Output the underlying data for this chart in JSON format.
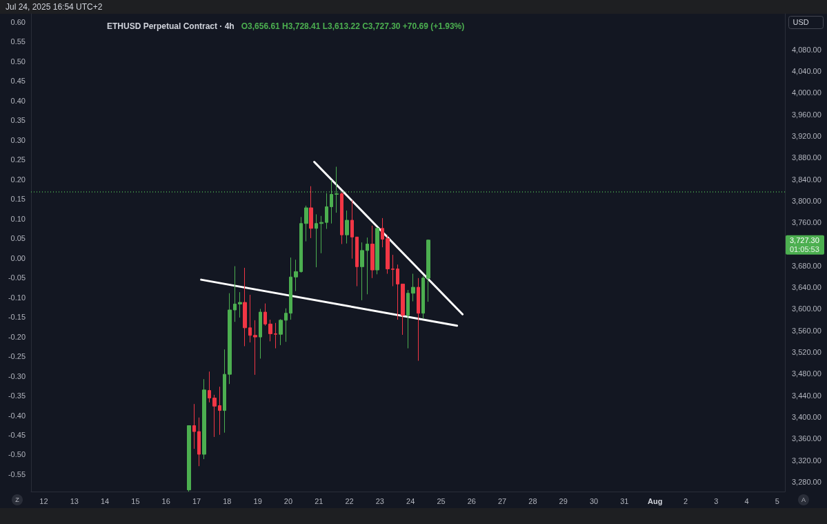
{
  "chart_data": {
    "type": "candlestick",
    "title": "ETHUSD Perpetual Contract · 4h",
    "subtitle": "O3,656.61 H3,728.41 L3,613.22 C3,727.30 +70.69 (+1.93%)",
    "annotations": [
      "Jul 24, 2025 16:54 UTC+2",
      "USD",
      "3,727.30",
      "01:05:53",
      "Z",
      "A"
    ],
    "x": [
      "2025-07-16T18:00",
      "2025-07-16T22:00",
      "2025-07-17T02:00",
      "2025-07-17T06:00",
      "2025-07-17T10:00",
      "2025-07-17T14:00",
      "2025-07-17T18:00",
      "2025-07-17T22:00",
      "2025-07-18T02:00",
      "2025-07-18T06:00",
      "2025-07-18T10:00",
      "2025-07-18T14:00",
      "2025-07-18T18:00",
      "2025-07-18T22:00",
      "2025-07-19T02:00",
      "2025-07-19T06:00",
      "2025-07-19T10:00",
      "2025-07-19T14:00",
      "2025-07-19T18:00",
      "2025-07-19T22:00",
      "2025-07-20T02:00",
      "2025-07-20T06:00",
      "2025-07-20T10:00",
      "2025-07-20T14:00",
      "2025-07-20T18:00",
      "2025-07-20T22:00",
      "2025-07-21T02:00",
      "2025-07-21T06:00",
      "2025-07-21T10:00",
      "2025-07-21T14:00",
      "2025-07-21T18:00",
      "2025-07-21T22:00",
      "2025-07-22T02:00",
      "2025-07-22T06:00",
      "2025-07-22T10:00",
      "2025-07-22T14:00",
      "2025-07-22T18:00",
      "2025-07-22T22:00",
      "2025-07-23T02:00",
      "2025-07-23T06:00",
      "2025-07-23T10:00",
      "2025-07-23T14:00",
      "2025-07-23T18:00",
      "2025-07-23T22:00",
      "2025-07-24T02:00",
      "2025-07-24T06:00",
      "2025-07-24T10:00",
      "2025-07-24T14:00"
    ],
    "ohlc": [
      [
        3265,
        3384,
        3262,
        3384
      ],
      [
        3384,
        3424,
        3341,
        3373
      ],
      [
        3373,
        3399,
        3309,
        3331
      ],
      [
        3331,
        3470,
        3322,
        3450
      ],
      [
        3449,
        3484,
        3427,
        3435
      ],
      [
        3435,
        3441,
        3363,
        3420
      ],
      [
        3421,
        3456,
        3367,
        3412
      ],
      [
        3412,
        3525,
        3371,
        3479
      ],
      [
        3479,
        3629,
        3461,
        3598
      ],
      [
        3598,
        3679,
        3576,
        3609
      ],
      [
        3609,
        3631,
        3584,
        3612
      ],
      [
        3612,
        3676,
        3531,
        3565
      ],
      [
        3565,
        3626,
        3538,
        3551
      ],
      [
        3551,
        3579,
        3478,
        3548
      ],
      [
        3548,
        3600,
        3508,
        3594
      ],
      [
        3594,
        3610,
        3569,
        3572
      ],
      [
        3572,
        3580,
        3540,
        3554
      ],
      [
        3554,
        3574,
        3527,
        3553
      ],
      [
        3553,
        3581,
        3533,
        3579
      ],
      [
        3579,
        3601,
        3539,
        3592
      ],
      [
        3592,
        3695,
        3580,
        3659
      ],
      [
        3659,
        3691,
        3633,
        3669
      ],
      [
        3669,
        3770,
        3667,
        3758
      ],
      [
        3758,
        3791,
        3725,
        3787
      ],
      [
        3787,
        3827,
        3731,
        3749
      ],
      [
        3749,
        3775,
        3677,
        3758
      ],
      [
        3758,
        3772,
        3703,
        3760
      ],
      [
        3760,
        3814,
        3748,
        3789
      ],
      [
        3789,
        3838,
        3758,
        3812
      ],
      [
        3812,
        3863,
        3778,
        3813
      ],
      [
        3813,
        3816,
        3720,
        3737
      ],
      [
        3737,
        3782,
        3721,
        3764
      ],
      [
        3764,
        3801,
        3693,
        3733
      ],
      [
        3733,
        3733,
        3642,
        3678
      ],
      [
        3678,
        3723,
        3616,
        3708
      ],
      [
        3708,
        3732,
        3627,
        3720
      ],
      [
        3720,
        3754,
        3657,
        3672
      ],
      [
        3672,
        3751,
        3664,
        3749
      ],
      [
        3749,
        3768,
        3714,
        3729
      ],
      [
        3730,
        3737,
        3665,
        3674
      ],
      [
        3674,
        3700,
        3642,
        3673
      ],
      [
        3674,
        3682,
        3580,
        3646
      ],
      [
        3646,
        3646,
        3552,
        3588
      ],
      [
        3588,
        3635,
        3527,
        3629
      ],
      [
        3629,
        3665,
        3614,
        3640
      ],
      [
        3640,
        3657,
        3504,
        3592
      ],
      [
        3592,
        3661,
        3582,
        3657
      ],
      [
        3656.61,
        3728.41,
        3613.22,
        3727.3
      ]
    ],
    "colors": [
      "#4caf50",
      "#f23645",
      "#f23645",
      "#4caf50",
      "#f23645",
      "#f23645",
      "#f23645",
      "#4caf50",
      "#4caf50",
      "#4caf50",
      "#4caf50",
      "#f23645",
      "#f23645",
      "#f23645",
      "#4caf50",
      "#f23645",
      "#f23645",
      "#f23645",
      "#4caf50",
      "#4caf50",
      "#4caf50",
      "#4caf50",
      "#4caf50",
      "#4caf50",
      "#f23645",
      "#4caf50",
      "#4caf50",
      "#4caf50",
      "#4caf50",
      "#4caf50",
      "#f23645",
      "#4caf50",
      "#f23645",
      "#f23645",
      "#4caf50",
      "#4caf50",
      "#f23645",
      "#4caf50",
      "#f23645",
      "#f23645",
      "#f23645",
      "#f23645",
      "#f23645",
      "#4caf50",
      "#4caf50",
      "#f23645",
      "#4caf50",
      "#4caf50"
    ],
    "series": [
      {
        "type": "line",
        "color": "#ffffff",
        "x": [
          "2025-07-20T20:24",
          "2025-07-25T16:50"
        ],
        "values": [
          3872,
          3590
        ]
      },
      {
        "type": "line",
        "color": "#ffffff",
        "x": [
          "2025-07-17T03:36",
          "2025-07-25T12:30"
        ],
        "values": [
          3654,
          3569
        ]
      }
    ],
    "ref_lines": [
      {
        "axis": "y",
        "value": 3817,
        "color": "#4caf50",
        "line_style": "dotted"
      }
    ],
    "xlim": [
      "2025-07-11T14:00",
      "2025-08-05T06:00"
    ],
    "xticks": [
      {
        "value": "2025-07-12",
        "label": "12"
      },
      {
        "value": "2025-07-13",
        "label": "13"
      },
      {
        "value": "2025-07-14",
        "label": "14"
      },
      {
        "value": "2025-07-15",
        "label": "15"
      },
      {
        "value": "2025-07-16",
        "label": "16"
      },
      {
        "value": "2025-07-17",
        "label": "17"
      },
      {
        "value": "2025-07-18",
        "label": "18"
      },
      {
        "value": "2025-07-19",
        "label": "19"
      },
      {
        "value": "2025-07-20",
        "label": "20"
      },
      {
        "value": "2025-07-21",
        "label": "21"
      },
      {
        "value": "2025-07-22",
        "label": "22"
      },
      {
        "value": "2025-07-23",
        "label": "23"
      },
      {
        "value": "2025-07-24",
        "label": "24"
      },
      {
        "value": "2025-07-25",
        "label": "25"
      },
      {
        "value": "2025-07-26",
        "label": "26"
      },
      {
        "value": "2025-07-27",
        "label": "27"
      },
      {
        "value": "2025-07-28",
        "label": "28"
      },
      {
        "value": "2025-07-29",
        "label": "29"
      },
      {
        "value": "2025-07-30",
        "label": "30"
      },
      {
        "value": "2025-07-31",
        "label": "31"
      },
      {
        "value": "2025-08-01",
        "label": "Aug"
      },
      {
        "value": "2025-08-02",
        "label": "2"
      },
      {
        "value": "2025-08-03",
        "label": "3"
      },
      {
        "value": "2025-08-04",
        "label": "4"
      },
      {
        "value": "2025-08-05",
        "label": "5"
      }
    ],
    "ylim": [
      3262,
      4146
    ],
    "yticks": [
      {
        "value": 3280,
        "label": "3,280.00"
      },
      {
        "value": 3320,
        "label": "3,320.00"
      },
      {
        "value": 3360,
        "label": "3,360.00"
      },
      {
        "value": 3400,
        "label": "3,400.00"
      },
      {
        "value": 3440,
        "label": "3,440.00"
      },
      {
        "value": 3480,
        "label": "3,480.00"
      },
      {
        "value": 3520,
        "label": "3,520.00"
      },
      {
        "value": 3560,
        "label": "3,560.00"
      },
      {
        "value": 3600,
        "label": "3,600.00"
      },
      {
        "value": 3640,
        "label": "3,640.00"
      },
      {
        "value": 3680,
        "label": "3,680.00"
      },
      {
        "value": 3760,
        "label": "3,760.00"
      },
      {
        "value": 3800,
        "label": "3,800.00"
      },
      {
        "value": 3840,
        "label": "3,840.00"
      },
      {
        "value": 3880,
        "label": "3,880.00"
      },
      {
        "value": 3920,
        "label": "3,920.00"
      },
      {
        "value": 3960,
        "label": "3,960.00"
      },
      {
        "value": 4000,
        "label": "4,000.00"
      },
      {
        "value": 4040,
        "label": "4,040.00"
      },
      {
        "value": 4080,
        "label": "4,080.00"
      }
    ],
    "y2lim": [
      -0.594,
      0.621
    ],
    "y2ticks": [
      {
        "value": 0.6,
        "label": "0.60"
      },
      {
        "value": 0.55,
        "label": "0.55"
      },
      {
        "value": 0.5,
        "label": "0.50"
      },
      {
        "value": 0.45,
        "label": "0.45"
      },
      {
        "value": 0.4,
        "label": "0.40"
      },
      {
        "value": 0.35,
        "label": "0.35"
      },
      {
        "value": 0.3,
        "label": "0.30"
      },
      {
        "value": 0.25,
        "label": "0.25"
      },
      {
        "value": 0.2,
        "label": "0.20"
      },
      {
        "value": 0.15,
        "label": "0.15"
      },
      {
        "value": 0.1,
        "label": "0.10"
      },
      {
        "value": 0.05,
        "label": "0.05"
      },
      {
        "value": 0,
        "label": "0.00"
      },
      {
        "value": -0.05,
        "label": "-0.05"
      },
      {
        "value": -0.1,
        "label": "-0.10"
      },
      {
        "value": -0.15,
        "label": "-0.15"
      },
      {
        "value": -0.2,
        "label": "-0.20"
      },
      {
        "value": -0.25,
        "label": "-0.25"
      },
      {
        "value": -0.3,
        "label": "-0.30"
      },
      {
        "value": -0.35,
        "label": "-0.35"
      },
      {
        "value": -0.4,
        "label": "-0.40"
      },
      {
        "value": -0.45,
        "label": "-0.45"
      },
      {
        "value": -0.5,
        "label": "-0.50"
      },
      {
        "value": -0.55,
        "label": "-0.55"
      }
    ]
  }
}
